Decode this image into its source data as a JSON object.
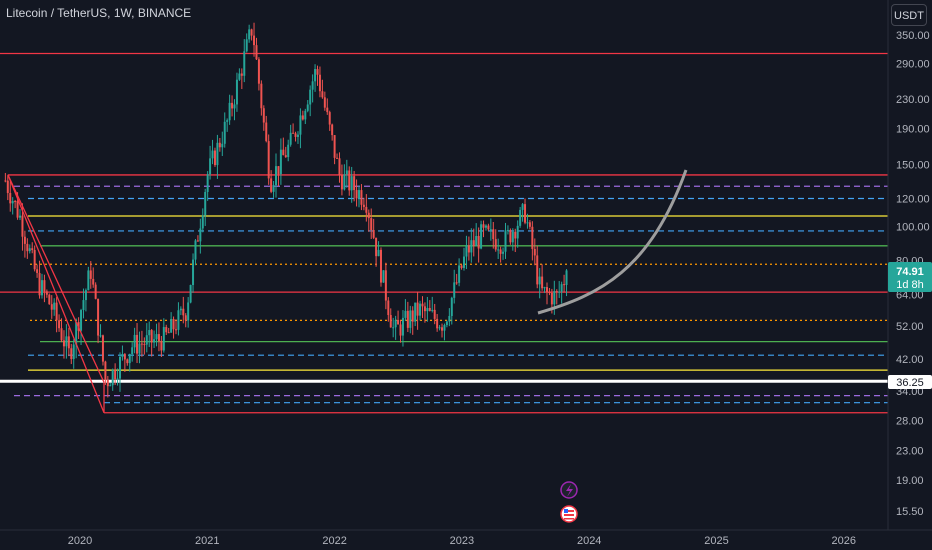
{
  "header": {
    "symbol_title": "Litecoin / TetherUS, 1W, BINANCE",
    "currency_button": "USDT"
  },
  "colors": {
    "background": "#131722",
    "up": "#26a69a",
    "down": "#ef5350",
    "red_line": "#f23645",
    "yellow_line": "#ffeb3b",
    "green_line": "#4caf50",
    "blue_dash": "#42a5f5",
    "purple_dash": "#9c6ade",
    "orange_dot": "#ff9800",
    "white_line": "#ffffff",
    "curve": "#9e9e9e"
  },
  "price_labels": {
    "current_price": "74.91",
    "countdown": "1d 8h",
    "white_level": "36.25"
  },
  "icons": [
    "lightning-icon",
    "us-flag-icon"
  ],
  "chart_data": {
    "type": "candlestick",
    "scale": "log",
    "y_ticks": [
      "350.00",
      "290.00",
      "230.00",
      "190.00",
      "150.00",
      "120.00",
      "100.00",
      "80.00",
      "64.00",
      "52.00",
      "42.00",
      "34.00",
      "28.00",
      "23.00",
      "19.00",
      "15.50"
    ],
    "x_ticks": [
      "2020",
      "2021",
      "2022",
      "2023",
      "2024",
      "2025",
      "2026"
    ],
    "horizontal_levels": [
      {
        "price": 310,
        "style": "red-solid"
      },
      {
        "price": 140,
        "style": "red-solid"
      },
      {
        "price": 130,
        "style": "purple-dashed"
      },
      {
        "price": 120,
        "style": "blue-dashed"
      },
      {
        "price": 107,
        "style": "yellow-solid"
      },
      {
        "price": 97,
        "style": "blue-dashed"
      },
      {
        "price": 88,
        "style": "green-solid"
      },
      {
        "price": 78,
        "style": "orange-dotted"
      },
      {
        "price": 65,
        "style": "red-solid"
      },
      {
        "price": 54,
        "style": "orange-dotted"
      },
      {
        "price": 47,
        "style": "green-solid"
      },
      {
        "price": 43,
        "style": "blue-dashed"
      },
      {
        "price": 39,
        "style": "yellow-solid"
      },
      {
        "price": 36.25,
        "style": "white-solid"
      },
      {
        "price": 33,
        "style": "purple-dashed"
      },
      {
        "price": 31.5,
        "style": "blue-dashed"
      },
      {
        "price": 29.5,
        "style": "red-solid"
      }
    ],
    "price_path": [
      {
        "date": "2019-06-01",
        "close": 135
      },
      {
        "date": "2019-07-15",
        "close": 105
      },
      {
        "date": "2019-09-01",
        "close": 70
      },
      {
        "date": "2019-10-15",
        "close": 58
      },
      {
        "date": "2019-12-01",
        "close": 43
      },
      {
        "date": "2020-02-01",
        "close": 75
      },
      {
        "date": "2020-03-15",
        "close": 36
      },
      {
        "date": "2020-06-01",
        "close": 46
      },
      {
        "date": "2020-09-01",
        "close": 48
      },
      {
        "date": "2020-11-01",
        "close": 58
      },
      {
        "date": "2021-01-01",
        "close": 140
      },
      {
        "date": "2021-03-01",
        "close": 200
      },
      {
        "date": "2021-05-10",
        "close": 370
      },
      {
        "date": "2021-07-01",
        "close": 135
      },
      {
        "date": "2021-09-01",
        "close": 175
      },
      {
        "date": "2021-11-10",
        "close": 280
      },
      {
        "date": "2022-01-15",
        "close": 140
      },
      {
        "date": "2022-04-01",
        "close": 120
      },
      {
        "date": "2022-06-20",
        "close": 50
      },
      {
        "date": "2022-09-01",
        "close": 58
      },
      {
        "date": "2022-11-10",
        "close": 53
      },
      {
        "date": "2023-01-15",
        "close": 85
      },
      {
        "date": "2023-03-01",
        "close": 95
      },
      {
        "date": "2023-05-01",
        "close": 90
      },
      {
        "date": "2023-07-01",
        "close": 110
      },
      {
        "date": "2023-08-15",
        "close": 65
      },
      {
        "date": "2023-10-01",
        "close": 63
      },
      {
        "date": "2023-11-01",
        "close": 74.91
      }
    ]
  }
}
